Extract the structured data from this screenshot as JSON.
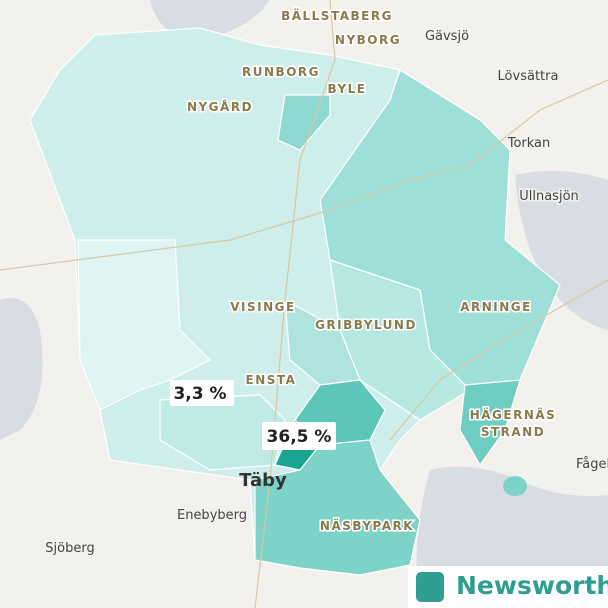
{
  "places": [
    {
      "label": "BÄLLSTABERG",
      "kind": "district"
    },
    {
      "label": "NYBORG",
      "kind": "district"
    },
    {
      "label": "Gävsjö",
      "kind": "town"
    },
    {
      "label": "Lövsättra",
      "kind": "town"
    },
    {
      "label": "RUNBORG",
      "kind": "district"
    },
    {
      "label": "BYLE",
      "kind": "district"
    },
    {
      "label": "NYGÅRD",
      "kind": "district"
    },
    {
      "label": "Torkan",
      "kind": "town"
    },
    {
      "label": "Ullnasjön",
      "kind": "town"
    },
    {
      "label": "VISINGE",
      "kind": "district"
    },
    {
      "label": "GRIBBYLUND",
      "kind": "district"
    },
    {
      "label": "ARNINGE",
      "kind": "district"
    },
    {
      "label": "ENSTA",
      "kind": "district"
    },
    {
      "label": "HÄGERNÄS",
      "kind": "district"
    },
    {
      "label": "STRAND",
      "kind": "district"
    },
    {
      "label": "Täby",
      "kind": "big"
    },
    {
      "label": "Enebyberg",
      "kind": "town"
    },
    {
      "label": "NÄSBYPARK",
      "kind": "district"
    },
    {
      "label": "Sjöberg",
      "kind": "town"
    },
    {
      "label": "Fågel",
      "kind": "town"
    }
  ],
  "value_labels": [
    "3,3 %",
    "36,5 %"
  ],
  "brand": "Newsworthy"
}
